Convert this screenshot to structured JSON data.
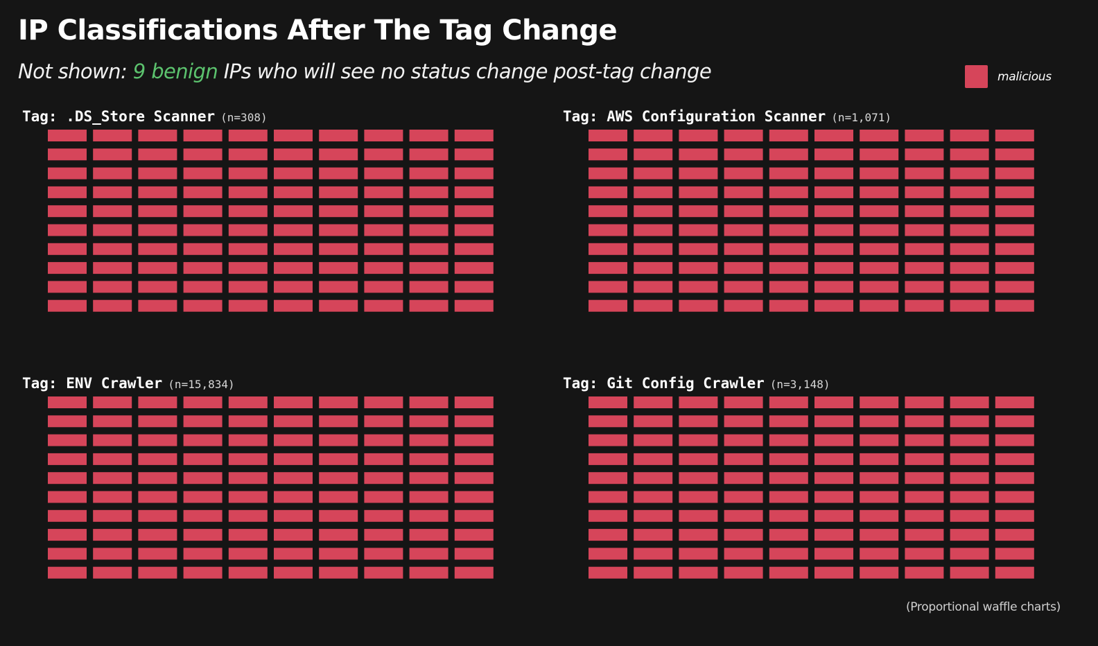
{
  "header": {
    "title": "IP Classifications After The Tag Change",
    "subtitle_prefix": "Not shown: ",
    "subtitle_highlight": "9 benign",
    "subtitle_suffix": " IPs who will see no status change post-tag change"
  },
  "legend": {
    "label": "malicious",
    "color": "#d6455a"
  },
  "caption": "(Proportional waffle charts)",
  "colors": {
    "background": "#151515",
    "malicious": "#d6455a",
    "benign_text": "#5cc36e"
  },
  "chart_data": [
    {
      "type": "waffle",
      "title": "Tag: .DS_Store Scanner",
      "n_label": "(n=308)",
      "n": 308,
      "rows": 10,
      "cols": 10,
      "categories": [
        "malicious"
      ],
      "values": [
        100
      ],
      "color": "#d6455a"
    },
    {
      "type": "waffle",
      "title": "Tag: AWS Configuration Scanner",
      "n_label": "(n=1,071)",
      "n": 1071,
      "rows": 10,
      "cols": 10,
      "categories": [
        "malicious"
      ],
      "values": [
        100
      ],
      "color": "#d6455a"
    },
    {
      "type": "waffle",
      "title": "Tag: ENV Crawler",
      "n_label": "(n=15,834)",
      "n": 15834,
      "rows": 10,
      "cols": 10,
      "categories": [
        "malicious"
      ],
      "values": [
        100
      ],
      "color": "#d6455a"
    },
    {
      "type": "waffle",
      "title": "Tag: Git Config Crawler",
      "n_label": "(n=3,148)",
      "n": 3148,
      "rows": 10,
      "cols": 10,
      "categories": [
        "malicious"
      ],
      "values": [
        100
      ],
      "color": "#d6455a"
    }
  ]
}
